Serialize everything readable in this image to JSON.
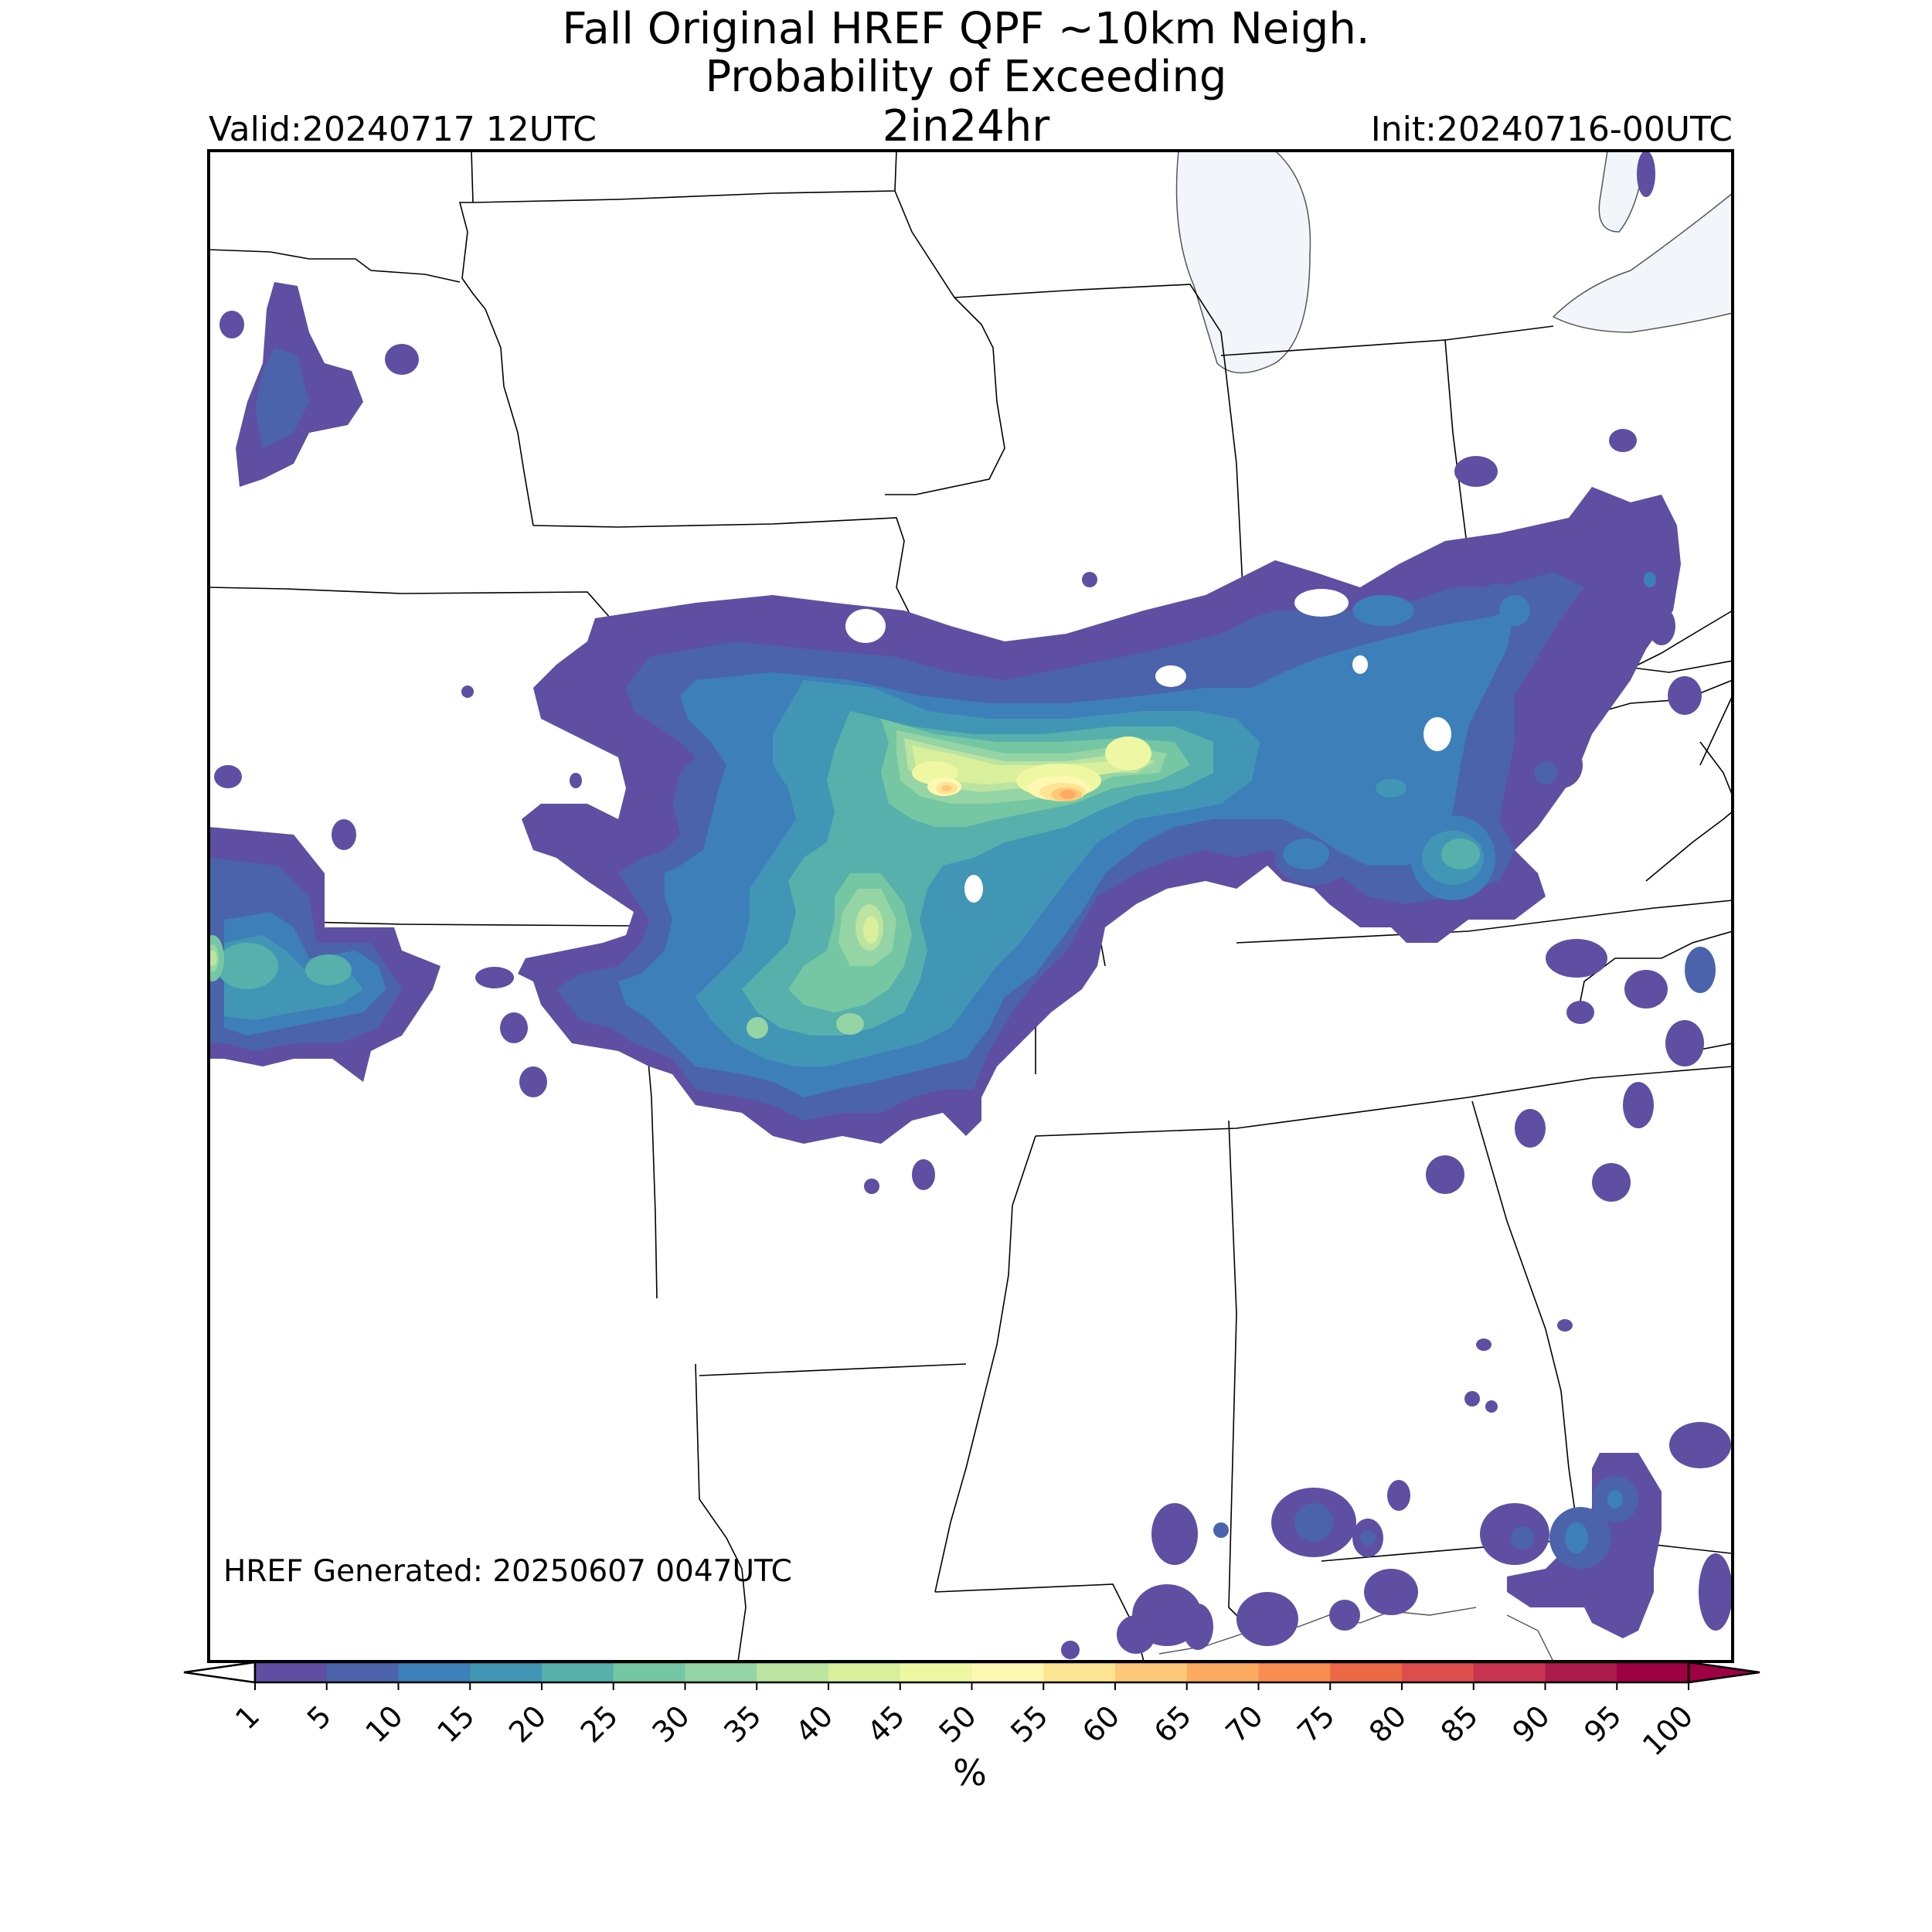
{
  "title": {
    "line1": "Fall Original HREF QPF ~10km Neigh.",
    "line2": "Probability of Exceeding",
    "line3": "2in24hr"
  },
  "valid_label": "Valid:20240717 12UTC",
  "init_label": "Init:20240716-00UTC",
  "generated_label": "HREF Generated: 20250607 0047UTC",
  "colorbar": {
    "label": "%",
    "ticks": [
      "1",
      "5",
      "10",
      "15",
      "20",
      "25",
      "30",
      "35",
      "40",
      "45",
      "50",
      "55",
      "60",
      "65",
      "70",
      "75",
      "80",
      "85",
      "90",
      "95",
      "100"
    ],
    "colors": [
      "#5e4fa2",
      "#4a63ab",
      "#3d7fb8",
      "#4196b5",
      "#57b0ab",
      "#75c7a4",
      "#95d4a4",
      "#bae4a0",
      "#d9ef9b",
      "#eef8a2",
      "#fff8b1",
      "#fee593",
      "#fdc978",
      "#fcaa60",
      "#f88d52",
      "#ed6946",
      "#dc4d4b",
      "#c73351",
      "#ac1a4b",
      "#9e0142"
    ],
    "over_color": "#9e0142",
    "under_color": "#ffffff"
  },
  "map": {
    "region": "central / south-central United States",
    "lake_color": "#f2f6fb"
  }
}
